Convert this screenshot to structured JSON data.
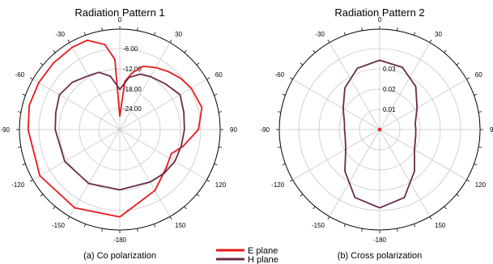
{
  "colors": {
    "e_plane": "#e8191a",
    "h_plane": "#6b2a4a",
    "grid": "#c8c8c8",
    "axis": "#000000"
  },
  "legend": {
    "items": [
      "E plane",
      "H plane"
    ]
  },
  "chart_data": [
    {
      "type": "polar",
      "title": "Radiation Pattern 1",
      "caption": "(a) Co polarization",
      "angle_labels": [
        "0",
        "30",
        "60",
        "90",
        "120",
        "150",
        "-180",
        "-150",
        "-120",
        "-90",
        "-60",
        "-30"
      ],
      "radial_labels": [
        "-6.00",
        "-12.00",
        "-18.00",
        "-24.00"
      ],
      "rlim": [
        -30,
        0
      ],
      "series": [
        {
          "name": "E plane",
          "angles": [
            -180,
            -150,
            -120,
            -90,
            -75,
            -60,
            -45,
            -30,
            -20,
            -10,
            -4,
            0,
            6,
            12,
            20,
            30,
            40,
            50,
            60,
            75,
            90,
            105,
            115,
            120,
            130,
            150,
            180
          ],
          "values": [
            -3.9,
            -3.0,
            -2.4,
            -2.6,
            -2.0,
            -2.0,
            -1.9,
            -1.6,
            -1.6,
            -4.2,
            -9.0,
            -26.0,
            -15.5,
            -12.8,
            -9.9,
            -8.6,
            -7.4,
            -6.2,
            -5.3,
            -4.6,
            -6.5,
            -10.5,
            -13.0,
            -12.8,
            -12.0,
            -9.0,
            -3.9
          ]
        },
        {
          "name": "H plane",
          "angles": [
            -180,
            -150,
            -120,
            -90,
            -75,
            -60,
            -45,
            -30,
            -20,
            -10,
            0,
            10,
            20,
            30,
            45,
            60,
            75,
            90,
            105,
            120,
            135,
            150,
            180
          ],
          "values": [
            -12.0,
            -11.4,
            -11.0,
            -10.7,
            -10.2,
            -9.2,
            -10.0,
            -11.4,
            -11.8,
            -13.8,
            -18.0,
            -14.2,
            -12.4,
            -11.7,
            -10.7,
            -9.2,
            -10.2,
            -10.7,
            -11.0,
            -11.0,
            -11.4,
            -11.9,
            -12.0
          ]
        }
      ]
    },
    {
      "type": "polar",
      "title": "Radiation Pattern 2",
      "caption": "(b) Cross polarization",
      "angle_labels": [
        "0",
        "30",
        "60",
        "90",
        "120",
        "150",
        "-180",
        "-150",
        "-120",
        "-90",
        "-60",
        "-30"
      ],
      "radial_labels": [
        "0.01",
        "0.02",
        "0.03"
      ],
      "rlim": [
        0,
        0.05
      ],
      "series": [
        {
          "name": "H plane",
          "angles": [
            -180,
            -160,
            -140,
            -120,
            -100,
            -90,
            -80,
            -60,
            -40,
            -20,
            0,
            20,
            40,
            60,
            80,
            90,
            100,
            120,
            140,
            160,
            180
          ],
          "values": [
            0.039,
            0.036,
            0.027,
            0.0195,
            0.0175,
            0.0175,
            0.0178,
            0.021,
            0.027,
            0.0325,
            0.0345,
            0.033,
            0.028,
            0.0215,
            0.018,
            0.018,
            0.0182,
            0.02,
            0.027,
            0.036,
            0.039
          ]
        },
        {
          "name": "E plane",
          "angles": [
            0
          ],
          "values": [
            0
          ]
        }
      ]
    }
  ]
}
